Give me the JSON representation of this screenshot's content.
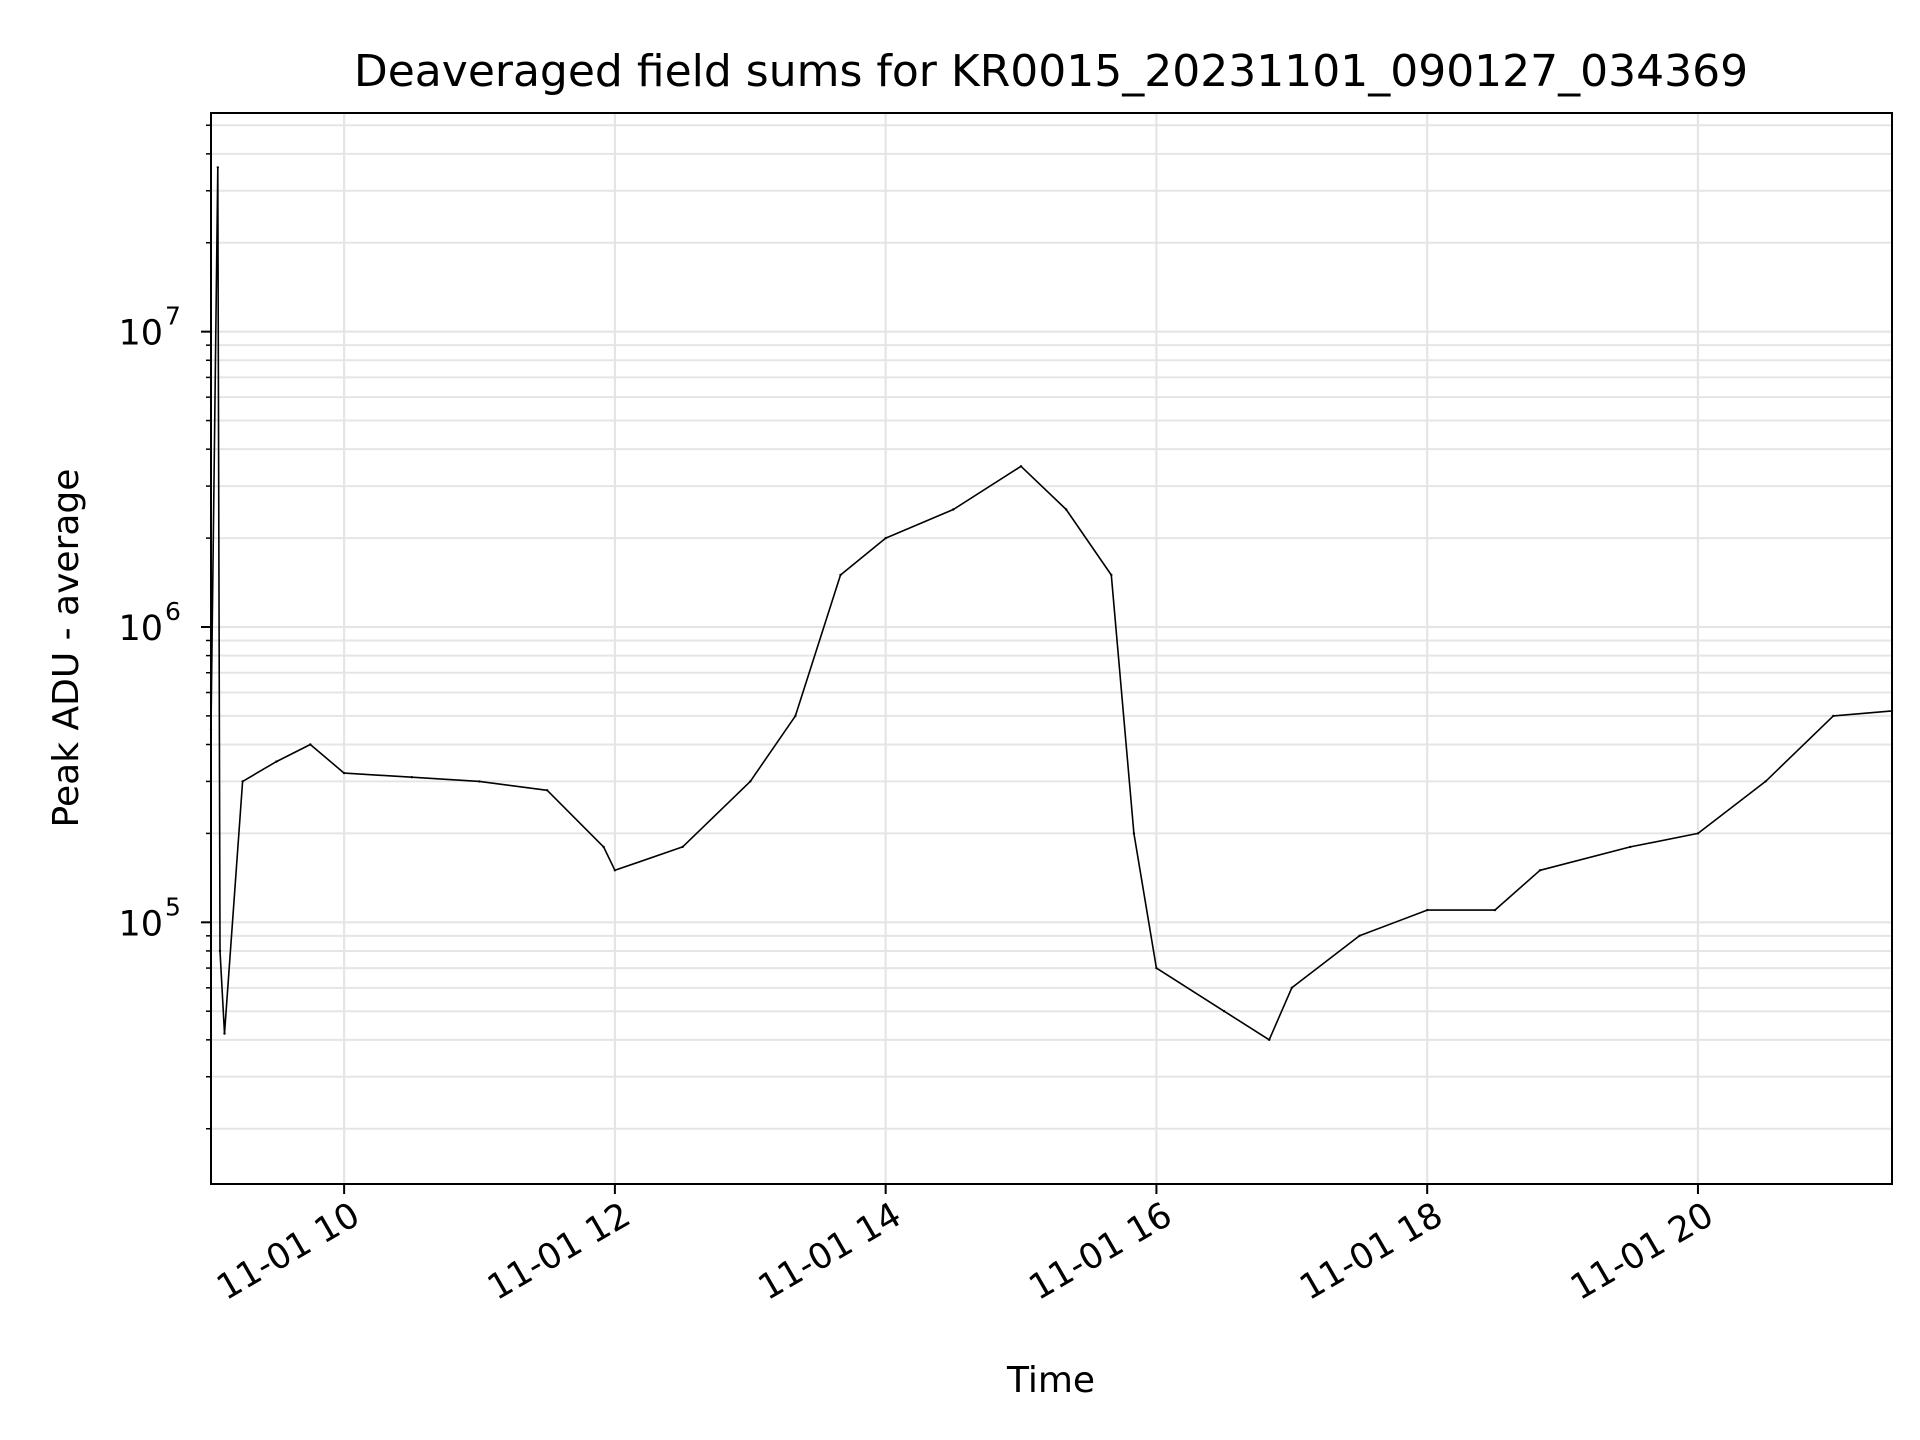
{
  "chart_data": {
    "type": "line",
    "title": "Deaveraged field sums for KR0015_20231101_090127_034369",
    "xlabel": "Time",
    "ylabel": "Peak ADU - average",
    "yscale": "log",
    "grid": true,
    "x_start": "11-01 09:01",
    "x_end": "11-01 21:26",
    "ylim": [
      13000,
      55000000
    ],
    "xticks": [
      "11-01 10",
      "11-01 12",
      "11-01 14",
      "11-01 16",
      "11-01 18",
      "11-01 20"
    ],
    "yticks": [
      {
        "value": 100000,
        "base": "10",
        "exp": "5"
      },
      {
        "value": 1000000,
        "base": "10",
        "exp": "6"
      },
      {
        "value": 10000000,
        "base": "10",
        "exp": "7"
      }
    ],
    "series": [
      {
        "color": "#000000",
        "points": [
          [
            "09:01",
            450000
          ],
          [
            "09:04",
            36000000
          ],
          [
            "09:05",
            80000
          ],
          [
            "09:07",
            42000
          ],
          [
            "09:15",
            300000
          ],
          [
            "09:30",
            350000
          ],
          [
            "09:45",
            400000
          ],
          [
            "10:00",
            320000
          ],
          [
            "10:30",
            310000
          ],
          [
            "11:00",
            300000
          ],
          [
            "11:30",
            280000
          ],
          [
            "11:55",
            180000
          ],
          [
            "12:00",
            150000
          ],
          [
            "12:30",
            180000
          ],
          [
            "13:00",
            300000
          ],
          [
            "13:20",
            500000
          ],
          [
            "13:40",
            1500000
          ],
          [
            "14:00",
            2000000
          ],
          [
            "14:30",
            2500000
          ],
          [
            "15:00",
            3500000
          ],
          [
            "15:20",
            2500000
          ],
          [
            "15:40",
            1500000
          ],
          [
            "15:50",
            200000
          ],
          [
            "16:00",
            70000
          ],
          [
            "16:30",
            50000
          ],
          [
            "16:50",
            40000
          ],
          [
            "17:00",
            60000
          ],
          [
            "17:30",
            90000
          ],
          [
            "18:00",
            110000
          ],
          [
            "18:30",
            110000
          ],
          [
            "18:50",
            150000
          ],
          [
            "19:30",
            180000
          ],
          [
            "20:00",
            200000
          ],
          [
            "20:30",
            300000
          ],
          [
            "21:00",
            500000
          ],
          [
            "21:26",
            520000
          ]
        ]
      }
    ]
  }
}
